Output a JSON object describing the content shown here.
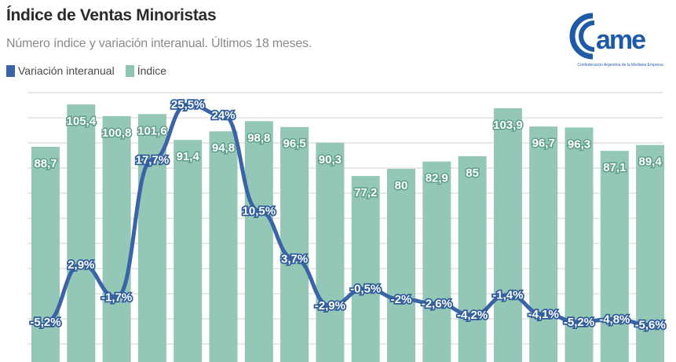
{
  "header": {
    "title": "Índice de Ventas Minoristas",
    "subtitle": "Número índice y variación interanual. Últimos 18 meses."
  },
  "legend": [
    {
      "label": "Variación interanual",
      "color": "#3a64a6"
    },
    {
      "label": "Índice",
      "color": "#8fc4b3"
    }
  ],
  "logo": {
    "text": "came",
    "tagline": "Confederación Argentina de la Mediana Empresa",
    "color": "#1f5aa8"
  },
  "colors": {
    "bar": "#94c7b6",
    "line": "#3a64a6",
    "grid": "#e9e9e9"
  },
  "chart_data": {
    "type": "bar",
    "title": "Índice de Ventas Minoristas",
    "subtitle": "Número índice y variación interanual. Últimos 18 meses.",
    "xlabel": "",
    "ylabel": "",
    "categories": [
      "1",
      "2",
      "3",
      "4",
      "5",
      "6",
      "7",
      "8",
      "9",
      "10",
      "11",
      "12",
      "13",
      "14",
      "15",
      "16",
      "17",
      "18"
    ],
    "series": [
      {
        "name": "Índice",
        "type": "bar",
        "color": "#94c7b6",
        "values": [
          88.7,
          105.4,
          100.8,
          101.6,
          91.4,
          94.8,
          98.8,
          96.5,
          90.3,
          77.2,
          80,
          82.9,
          85,
          103.9,
          96.7,
          96.3,
          87.1,
          89.4
        ],
        "labels": [
          "88,7",
          "105,4",
          "100,8",
          "101,6",
          "91,4",
          "94,8",
          "98,8",
          "96,5",
          "90,3",
          "77,2",
          "80",
          "82,9",
          "85",
          "103,9",
          "96,7",
          "96,3",
          "87,1",
          "89,4"
        ]
      },
      {
        "name": "Variación interanual",
        "type": "line",
        "unit": "%",
        "color": "#3a64a6",
        "values": [
          -5.2,
          2.9,
          -1.7,
          17.7,
          25.5,
          24,
          10.5,
          3.7,
          -2.9,
          -0.5,
          -2,
          -2.6,
          -4.2,
          -1.4,
          -4.1,
          -5.2,
          -4.8,
          -5.6
        ],
        "labels": [
          "-5,2%",
          "2,9%",
          "-1,7%",
          "17,7%",
          "25,5%",
          "24%",
          "10,5%",
          "3,7%",
          "-2,9%",
          "-0,5%",
          "-2%",
          "-2,6%",
          "-4,2%",
          "-1,4%",
          "-4,1%",
          "-5,2%",
          "-4,8%",
          "-5,6%"
        ]
      }
    ],
    "legend_position": "top-left",
    "grid": true,
    "axis_labels_visible": false
  }
}
